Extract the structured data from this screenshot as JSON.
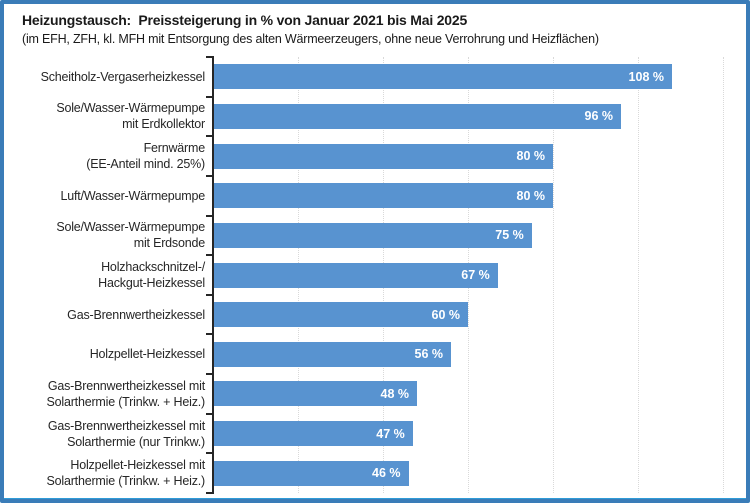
{
  "frame": {
    "border_color": "#3a7cb8"
  },
  "chart_data": {
    "type": "bar",
    "orientation": "horizontal",
    "title": "Heizungstausch:  Preissteigerung in % von Januar 2021 bis Mai 2025",
    "subtitle": "(im EFH, ZFH, kl. MFH mit Entsorgung des alten Wärmeerzeugers, ohne neue Verrohrung und Heizflächen)",
    "categories": [
      "Scheitholz-Vergaserheizkessel",
      "Sole/Wasser-Wärmepumpe\nmit Erdkollektor",
      "Fernwärme\n(EE-Anteil mind. 25%)",
      "Luft/Wasser-Wärmepumpe",
      "Sole/Wasser-Wärmepumpe\nmit Erdsonde",
      "Holzhackschnitzel-/\nHackgut-Heizkessel",
      "Gas-Brennwertheizkessel",
      "Holzpellet-Heizkessel",
      "Gas-Brennwertheizkessel mit\nSolarthermie (Trinkw. + Heiz.)",
      "Gas-Brennwertheizkessel mit\nSolarthermie (nur Trinkw.)",
      "Holzpellet-Heizkessel mit\nSolarthermie (Trinkw. + Heiz.)"
    ],
    "values": [
      108,
      96,
      80,
      80,
      75,
      67,
      60,
      56,
      48,
      47,
      46
    ],
    "value_labels": [
      "108 %",
      "96 %",
      "80 %",
      "80 %",
      "75 %",
      "67 %",
      "60 %",
      "56 %",
      "48 %",
      "47 %",
      "46 %"
    ],
    "value_suffix": " %",
    "xlabel": "",
    "ylabel": "",
    "xlim": [
      0,
      120
    ],
    "gridline_step": 20,
    "grid": "vertical-dotted",
    "legend": "none",
    "bar_color": "#5893d0",
    "value_label_color": "#ffffff",
    "axis_color": "#262626",
    "gridline_color": "#d9d9d9"
  }
}
